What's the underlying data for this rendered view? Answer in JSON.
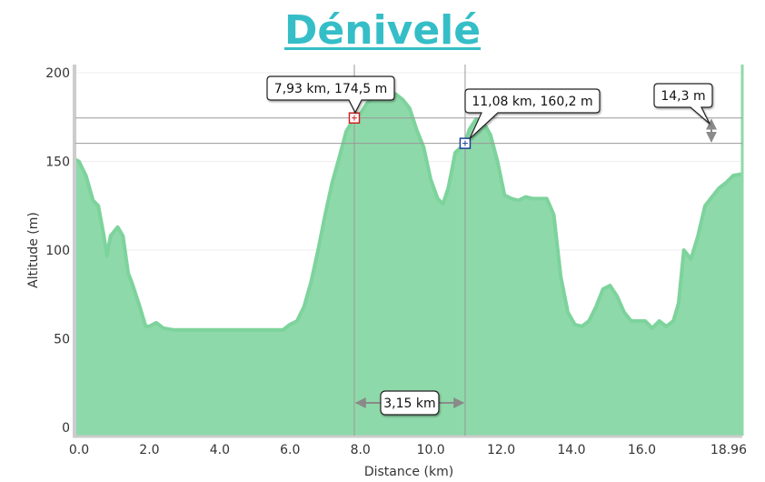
{
  "chart_data": {
    "type": "area",
    "title": "Dénivelé",
    "xlabel": "Distance   (km)",
    "ylabel": "Altitude (m)",
    "xlim": [
      0,
      18.96
    ],
    "ylim": [
      0,
      200
    ],
    "x_ticks": [
      "0.0",
      "2.0",
      "4.0",
      "6.0",
      "8.0",
      "10.0",
      "12.0",
      "14.0",
      "16.0",
      "18.96"
    ],
    "x_tick_values": [
      0,
      2,
      4,
      6,
      8,
      10,
      12,
      14,
      16,
      18.96
    ],
    "y_ticks": [
      "0",
      "50",
      "100",
      "150",
      "200"
    ],
    "y_tick_values": [
      0,
      50,
      100,
      150,
      200
    ],
    "fill_color": "#8ed9a9",
    "line_color": "#7dd39c",
    "series": [
      {
        "x": [
          0,
          0.1,
          0.3,
          0.5,
          0.65,
          0.8,
          0.9,
          1.0,
          1.2,
          1.35,
          1.5,
          1.6,
          1.8,
          2.0,
          2.1,
          2.3,
          2.5,
          2.8,
          3.2,
          3.6,
          4.0,
          4.4,
          4.8,
          5.2,
          5.6,
          5.9,
          6.1,
          6.3,
          6.5,
          6.7,
          6.9,
          7.1,
          7.3,
          7.5,
          7.7,
          7.93,
          8.1,
          8.3,
          8.5,
          8.8,
          9.1,
          9.3,
          9.5,
          9.7,
          9.9,
          10.1,
          10.3,
          10.45,
          10.6,
          10.8,
          11.08,
          11.2,
          11.4,
          11.6,
          11.8,
          12.0,
          12.2,
          12.4,
          12.6,
          12.8,
          13.0,
          13.2,
          13.4,
          13.6,
          13.8,
          14.0,
          14.2,
          14.4,
          14.6,
          14.8,
          15.0,
          15.2,
          15.4,
          15.6,
          15.8,
          16.0,
          16.2,
          16.4,
          16.6,
          16.8,
          17.0,
          17.15,
          17.3,
          17.5,
          17.7,
          17.9,
          18.1,
          18.3,
          18.5,
          18.7,
          18.96
        ],
        "y": [
          151,
          150,
          142,
          128,
          125,
          109,
          97,
          108,
          113,
          108,
          87,
          82,
          70,
          57,
          57,
          59,
          56,
          55,
          55,
          55,
          55,
          55,
          55,
          55,
          55,
          55,
          58,
          60,
          68,
          82,
          100,
          120,
          138,
          152,
          167,
          174.5,
          177,
          183,
          186,
          186,
          188,
          185,
          180,
          168,
          158,
          140,
          129,
          126,
          135,
          155,
          160.2,
          168,
          174,
          172,
          165,
          150,
          131,
          129,
          128,
          130,
          129,
          129,
          129,
          120,
          85,
          65,
          58,
          57,
          60,
          68,
          78,
          80,
          74,
          65,
          60,
          60,
          60,
          56,
          60,
          57,
          60,
          70,
          100,
          95,
          108,
          125,
          130,
          135,
          138,
          142,
          143
        ]
      }
    ],
    "markers": [
      {
        "x": 7.93,
        "y": 174.5,
        "label": "7,93 km, 174,5 m",
        "color": "#cc2222"
      },
      {
        "x": 11.08,
        "y": 160.2,
        "label": "11,08 km, 160,2 m",
        "color": "#1a3f9a"
      }
    ],
    "distance_label": "3,15 km",
    "elevation_diff_label": "14,3 m"
  }
}
